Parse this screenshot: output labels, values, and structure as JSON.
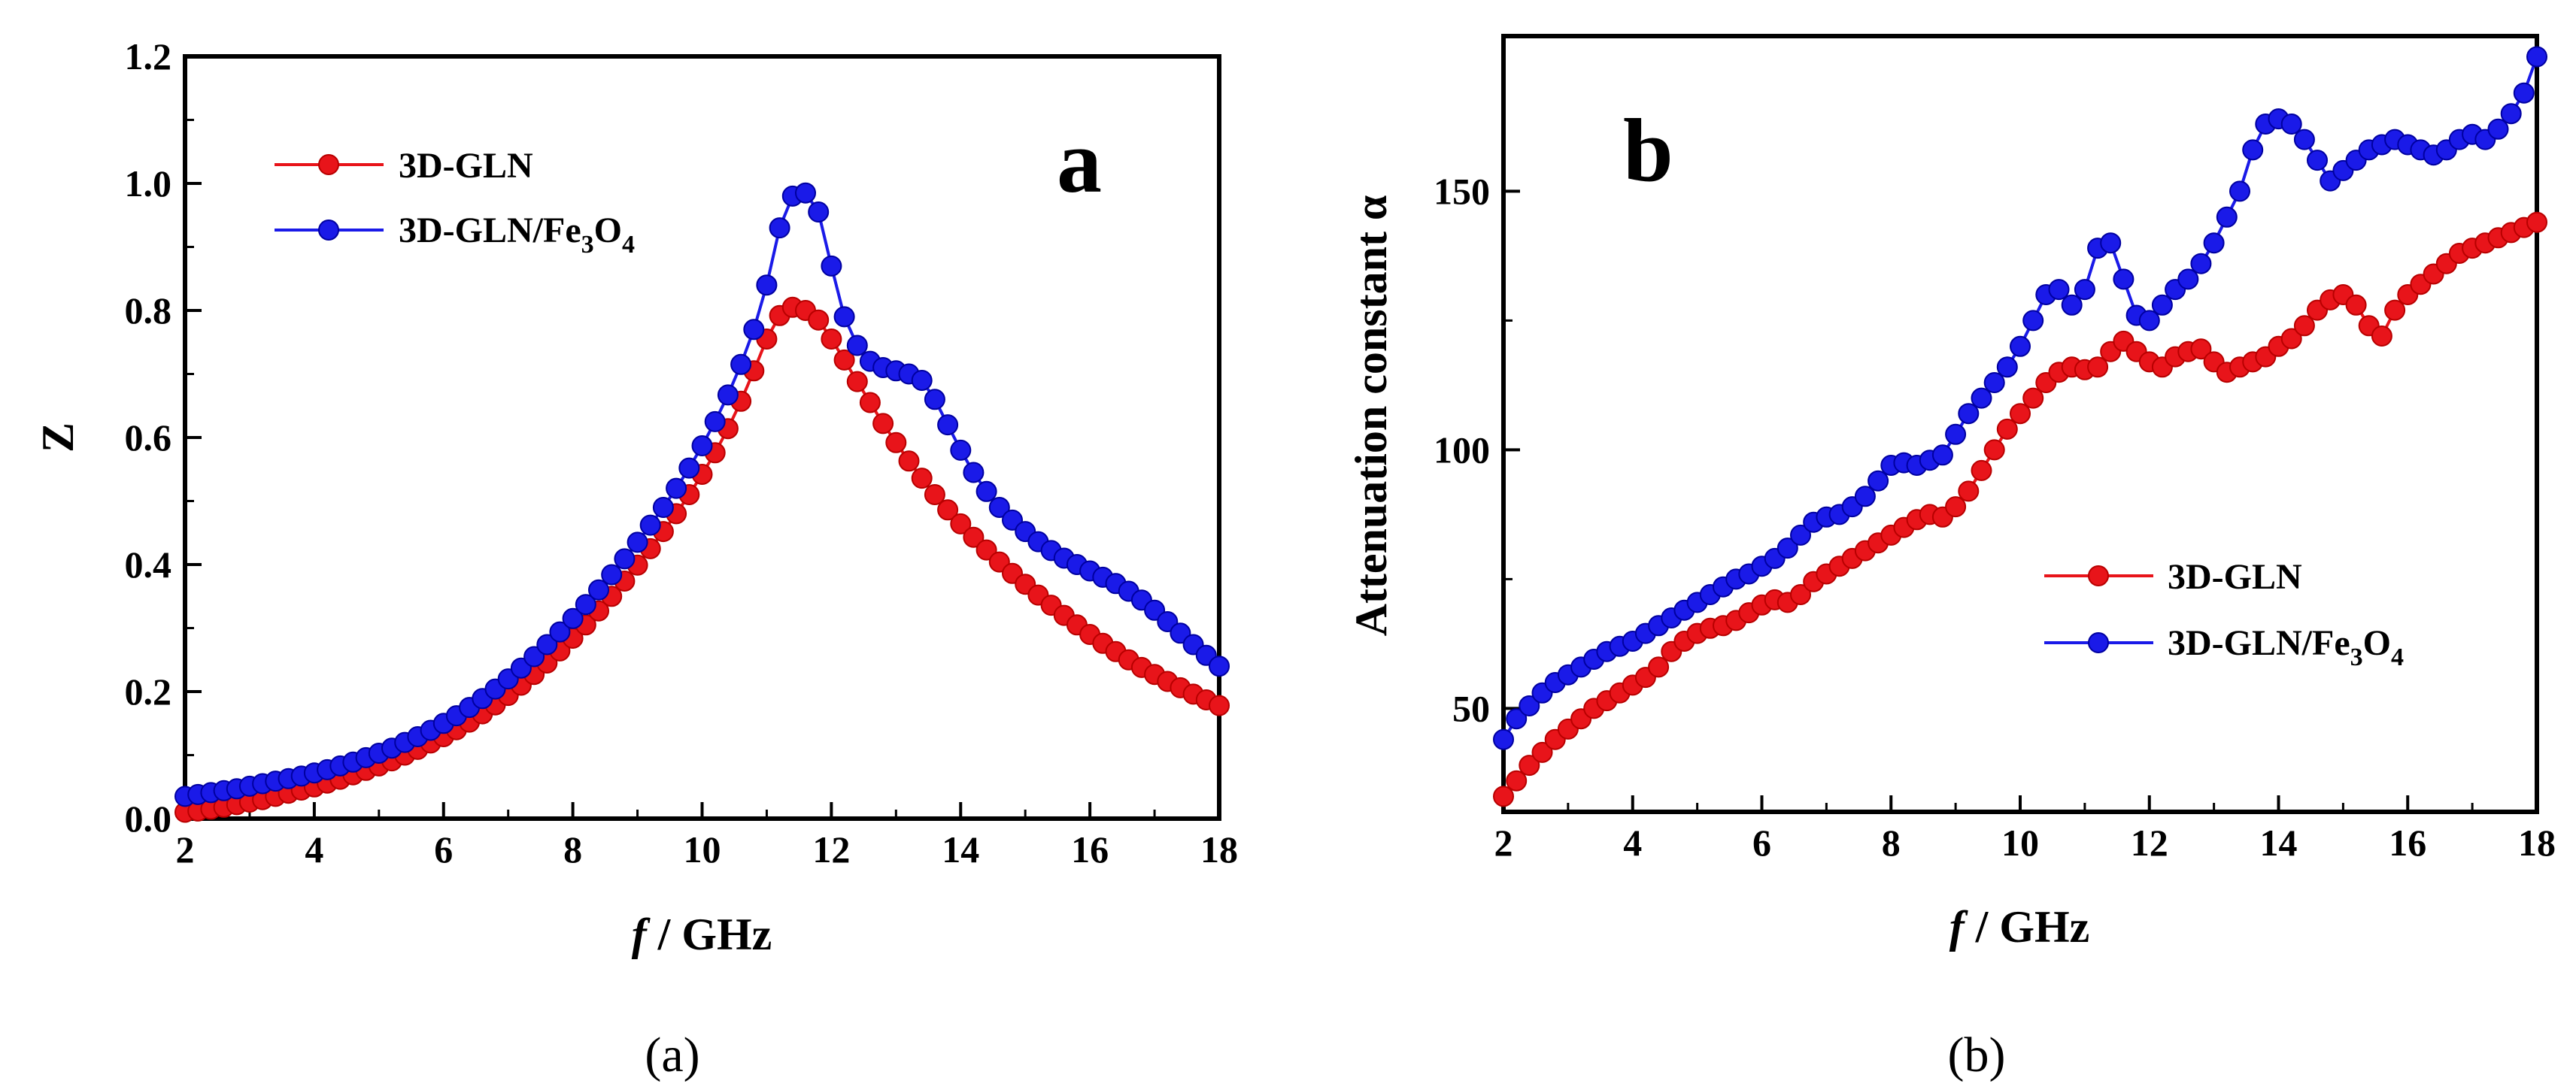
{
  "figure": {
    "caption_a": "a",
    "caption_b": "b"
  },
  "chart_data": [
    {
      "type": "line",
      "panel_label": "a",
      "title": "",
      "xlabel_italic": "f",
      "xlabel_rest": " / GHz",
      "ylabel": "Z",
      "xlim": [
        2,
        18
      ],
      "ylim": [
        0,
        1.2
      ],
      "xticks": [
        2,
        4,
        6,
        8,
        10,
        12,
        14,
        16,
        18
      ],
      "yticks": [
        "0.0",
        "0.2",
        "0.4",
        "0.6",
        "0.8",
        "1.0",
        "1.2"
      ],
      "legend_position": "top-left",
      "x": [
        2.0,
        2.2,
        2.4,
        2.6,
        2.8,
        3.0,
        3.2,
        3.4,
        3.6,
        3.8,
        4.0,
        4.2,
        4.4,
        4.6,
        4.8,
        5.0,
        5.2,
        5.4,
        5.6,
        5.8,
        6.0,
        6.2,
        6.4,
        6.6,
        6.8,
        7.0,
        7.2,
        7.4,
        7.6,
        7.8,
        8.0,
        8.2,
        8.4,
        8.6,
        8.8,
        9.0,
        9.2,
        9.4,
        9.6,
        9.8,
        10.0,
        10.2,
        10.4,
        10.6,
        10.8,
        11.0,
        11.2,
        11.4,
        11.6,
        11.8,
        12.0,
        12.2,
        12.4,
        12.6,
        12.8,
        13.0,
        13.2,
        13.4,
        13.6,
        13.8,
        14.0,
        14.2,
        14.4,
        14.6,
        14.8,
        15.0,
        15.2,
        15.4,
        15.6,
        15.8,
        16.0,
        16.2,
        16.4,
        16.6,
        16.8,
        17.0,
        17.2,
        17.4,
        17.6,
        17.8,
        18.0
      ],
      "series": [
        {
          "name_main": "3D-GLN",
          "name_sub1": "",
          "name_mid": "",
          "name_sub2": "",
          "color": "#e8141a",
          "edge": "#b80000",
          "values": [
            0.01,
            0.012,
            0.015,
            0.018,
            0.022,
            0.026,
            0.03,
            0.035,
            0.04,
            0.045,
            0.05,
            0.056,
            0.062,
            0.069,
            0.076,
            0.083,
            0.091,
            0.1,
            0.109,
            0.119,
            0.129,
            0.14,
            0.152,
            0.165,
            0.179,
            0.194,
            0.21,
            0.227,
            0.245,
            0.264,
            0.284,
            0.305,
            0.327,
            0.35,
            0.374,
            0.399,
            0.425,
            0.452,
            0.48,
            0.51,
            0.542,
            0.576,
            0.614,
            0.657,
            0.705,
            0.755,
            0.792,
            0.805,
            0.8,
            0.785,
            0.755,
            0.722,
            0.688,
            0.655,
            0.622,
            0.592,
            0.563,
            0.536,
            0.51,
            0.486,
            0.464,
            0.443,
            0.423,
            0.404,
            0.386,
            0.369,
            0.352,
            0.336,
            0.32,
            0.305,
            0.29,
            0.276,
            0.263,
            0.25,
            0.238,
            0.227,
            0.216,
            0.206,
            0.196,
            0.187,
            0.178
          ]
        },
        {
          "name_main": "3D-GLN/Fe",
          "name_sub1": "3",
          "name_mid": "O",
          "name_sub2": "4",
          "color": "#1a1ae8",
          "edge": "#0000a0",
          "values": [
            0.035,
            0.038,
            0.041,
            0.044,
            0.047,
            0.051,
            0.055,
            0.059,
            0.063,
            0.067,
            0.072,
            0.077,
            0.083,
            0.089,
            0.096,
            0.103,
            0.111,
            0.12,
            0.129,
            0.139,
            0.15,
            0.162,
            0.175,
            0.189,
            0.204,
            0.22,
            0.237,
            0.255,
            0.274,
            0.294,
            0.315,
            0.337,
            0.36,
            0.384,
            0.409,
            0.435,
            0.462,
            0.49,
            0.52,
            0.552,
            0.587,
            0.625,
            0.667,
            0.715,
            0.77,
            0.84,
            0.93,
            0.98,
            0.985,
            0.955,
            0.87,
            0.79,
            0.745,
            0.72,
            0.71,
            0.705,
            0.7,
            0.69,
            0.66,
            0.62,
            0.58,
            0.545,
            0.515,
            0.49,
            0.47,
            0.452,
            0.436,
            0.422,
            0.41,
            0.4,
            0.39,
            0.38,
            0.37,
            0.358,
            0.344,
            0.328,
            0.31,
            0.292,
            0.274,
            0.257,
            0.24
          ]
        }
      ]
    },
    {
      "type": "line",
      "panel_label": "b",
      "title": "",
      "xlabel_italic": "f",
      "xlabel_rest": " / GHz",
      "ylabel": "Attenuation constant α",
      "xlim": [
        2,
        18
      ],
      "ylim": [
        30,
        180
      ],
      "xticks": [
        2,
        4,
        6,
        8,
        10,
        12,
        14,
        16,
        18
      ],
      "yticks": [
        "50",
        "100",
        "150"
      ],
      "legend_position": "bottom-right",
      "x": [
        2.0,
        2.2,
        2.4,
        2.6,
        2.8,
        3.0,
        3.2,
        3.4,
        3.6,
        3.8,
        4.0,
        4.2,
        4.4,
        4.6,
        4.8,
        5.0,
        5.2,
        5.4,
        5.6,
        5.8,
        6.0,
        6.2,
        6.4,
        6.6,
        6.8,
        7.0,
        7.2,
        7.4,
        7.6,
        7.8,
        8.0,
        8.2,
        8.4,
        8.6,
        8.8,
        9.0,
        9.2,
        9.4,
        9.6,
        9.8,
        10.0,
        10.2,
        10.4,
        10.6,
        10.8,
        11.0,
        11.2,
        11.4,
        11.6,
        11.8,
        12.0,
        12.2,
        12.4,
        12.6,
        12.8,
        13.0,
        13.2,
        13.4,
        13.6,
        13.8,
        14.0,
        14.2,
        14.4,
        14.6,
        14.8,
        15.0,
        15.2,
        15.4,
        15.6,
        15.8,
        16.0,
        16.2,
        16.4,
        16.6,
        16.8,
        17.0,
        17.2,
        17.4,
        17.6,
        17.8,
        18.0
      ],
      "series": [
        {
          "name_main": "3D-GLN",
          "name_sub1": "",
          "name_mid": "",
          "name_sub2": "",
          "color": "#e8141a",
          "edge": "#b80000",
          "values": [
            33,
            36,
            39,
            41.5,
            44,
            46,
            48,
            50,
            51.5,
            53,
            54.5,
            56,
            58,
            61,
            63,
            64.5,
            65.5,
            66,
            67,
            68.5,
            70,
            71,
            70.5,
            72,
            74.5,
            76,
            77.5,
            79,
            80.5,
            82,
            83.5,
            85,
            86.5,
            87.5,
            87,
            89,
            92,
            96,
            100,
            104,
            107,
            110,
            113,
            115,
            116,
            115.5,
            116,
            119,
            121,
            119,
            117,
            116,
            118,
            119,
            119.5,
            117,
            115,
            116,
            117,
            118,
            120,
            121.5,
            124,
            127,
            129,
            130,
            128,
            124,
            122,
            127,
            130,
            132,
            134,
            136,
            138,
            139,
            140,
            141,
            142,
            143,
            144
          ]
        },
        {
          "name_main": "3D-GLN/Fe",
          "name_sub1": "3",
          "name_mid": "O",
          "name_sub2": "4",
          "color": "#1a1ae8",
          "edge": "#0000a0",
          "values": [
            44,
            48,
            50.5,
            53,
            55,
            56.5,
            58,
            59.5,
            61,
            62,
            63,
            64.5,
            66,
            67.5,
            69,
            70.5,
            72,
            73.5,
            75,
            76,
            77.5,
            79,
            81,
            83.5,
            86,
            87,
            87.5,
            89,
            91,
            94,
            97,
            97.5,
            97,
            98,
            99,
            103,
            107,
            110,
            113,
            116,
            120,
            125,
            130,
            131,
            128,
            131,
            139,
            140,
            133,
            126,
            125,
            128,
            131,
            133,
            136,
            140,
            145,
            150,
            158,
            163,
            164,
            163,
            160,
            156,
            152,
            154,
            156,
            158,
            159,
            160,
            159,
            158,
            157,
            158,
            160,
            161,
            160,
            162,
            165,
            169,
            176
          ]
        }
      ]
    }
  ]
}
